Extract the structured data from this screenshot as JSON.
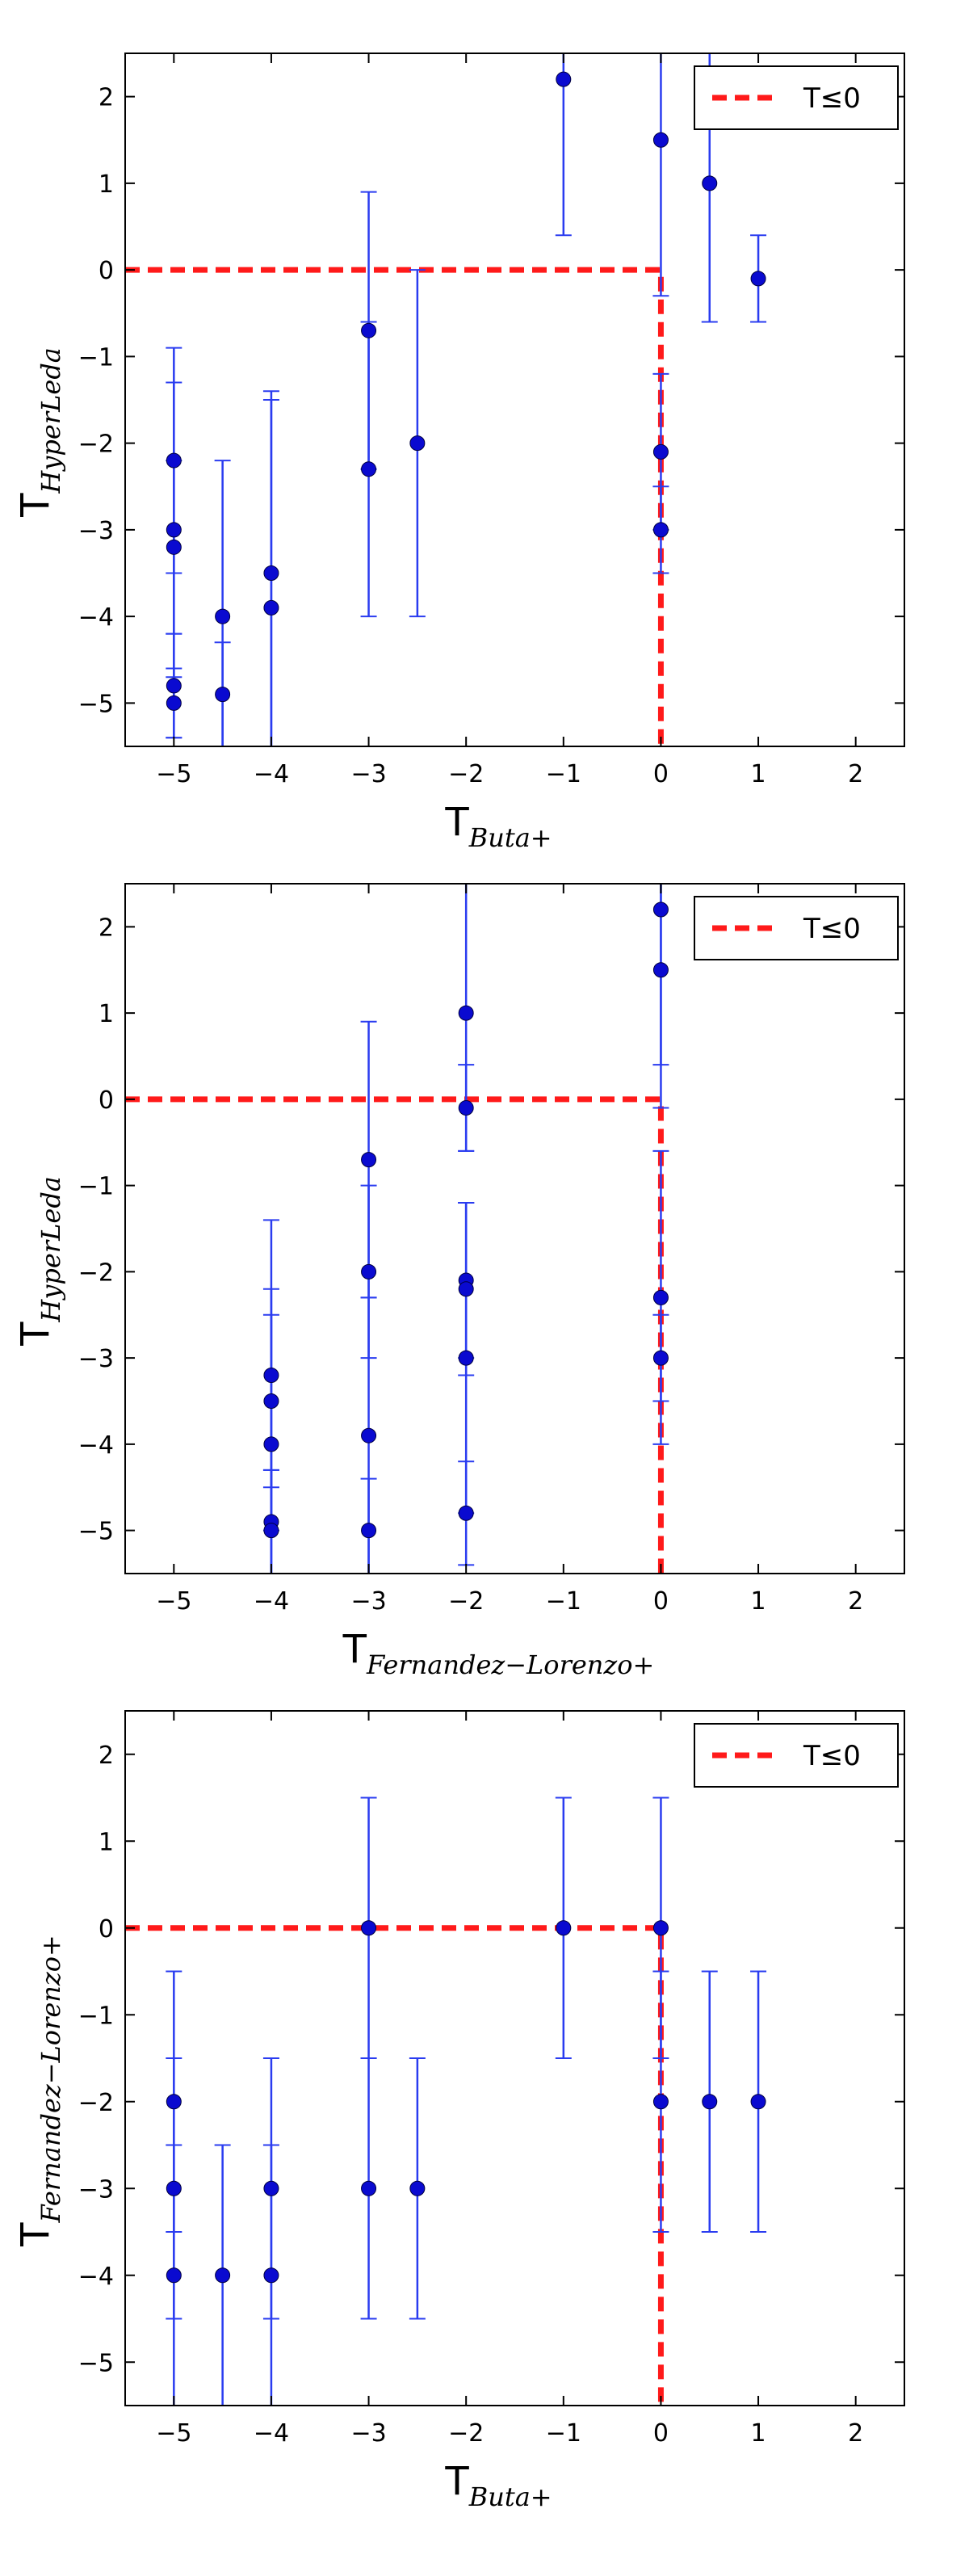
{
  "chart_data": [
    {
      "type": "scatter",
      "xlabel": {
        "main": "T",
        "sub": "Buta+"
      },
      "ylabel": {
        "main": "T",
        "sub": "HyperLeda"
      },
      "xlim": [
        -5.5,
        2.5
      ],
      "ylim": [
        -5.5,
        2.5
      ],
      "xticks": [
        -5,
        -4,
        -3,
        -2,
        -1,
        0,
        1,
        2
      ],
      "yticks": [
        2,
        1,
        0,
        -1,
        -2,
        -3,
        -4,
        -5
      ],
      "tick_labels_x": [
        "−5",
        "−4",
        "−3",
        "−2",
        "−1",
        "0",
        "1",
        "2"
      ],
      "tick_labels_y": [
        "2",
        "1",
        "0",
        "−1",
        "−2",
        "−3",
        "−4",
        "−5"
      ],
      "legend": {
        "label": "T≤0",
        "placement": "top-right"
      },
      "threshold": 0,
      "points": [
        {
          "x": -5,
          "y": -2.2,
          "err": 1.3
        },
        {
          "x": -5,
          "y": -3.0,
          "err": 1.7
        },
        {
          "x": -5,
          "y": -3.2,
          "err": 1.0
        },
        {
          "x": -5,
          "y": -4.8,
          "err": 0.6
        },
        {
          "x": -5,
          "y": -5.0,
          "err": 0.4
        },
        {
          "x": -4.5,
          "y": -4.0,
          "err": 1.8
        },
        {
          "x": -4.5,
          "y": -4.9,
          "err": 0.6
        },
        {
          "x": -4,
          "y": -3.5,
          "err": 2.1
        },
        {
          "x": -4,
          "y": -3.9,
          "err": 2.4
        },
        {
          "x": -3,
          "y": -0.7,
          "err": 1.6
        },
        {
          "x": -3,
          "y": -2.3,
          "err": 1.7
        },
        {
          "x": -2.5,
          "y": -2.0,
          "err": 2.0
        },
        {
          "x": -1,
          "y": 2.2,
          "err": 1.8
        },
        {
          "x": 0,
          "y": 1.5,
          "err": 1.8
        },
        {
          "x": 0,
          "y": -2.1,
          "err": 0.9
        },
        {
          "x": 0,
          "y": -3.0,
          "err": 0.5
        },
        {
          "x": 0.5,
          "y": 1.0,
          "err": 1.6
        },
        {
          "x": 1,
          "y": -0.1,
          "err": 0.5
        }
      ]
    },
    {
      "type": "scatter",
      "xlabel": {
        "main": "T",
        "sub": "Fernandez−Lorenzo+"
      },
      "ylabel": {
        "main": "T",
        "sub": "HyperLeda"
      },
      "xlim": [
        -5.5,
        2.5
      ],
      "ylim": [
        -5.5,
        2.5
      ],
      "xticks": [
        -5,
        -4,
        -3,
        -2,
        -1,
        0,
        1,
        2
      ],
      "yticks": [
        2,
        1,
        0,
        -1,
        -2,
        -3,
        -4,
        -5
      ],
      "tick_labels_x": [
        "−5",
        "−4",
        "−3",
        "−2",
        "−1",
        "0",
        "1",
        "2"
      ],
      "tick_labels_y": [
        "2",
        "1",
        "0",
        "−1",
        "−2",
        "−3",
        "−4",
        "−5"
      ],
      "legend": {
        "label": "T≤0",
        "placement": "top-right"
      },
      "threshold": 0,
      "points": [
        {
          "x": -4,
          "y": -3.2,
          "err": 1.8
        },
        {
          "x": -4,
          "y": -3.5,
          "err": 1.0
        },
        {
          "x": -4,
          "y": -4.0,
          "err": 1.8
        },
        {
          "x": -4,
          "y": -4.9,
          "err": 0.6
        },
        {
          "x": -4,
          "y": -5.0,
          "err": 0.7
        },
        {
          "x": -3,
          "y": -0.7,
          "err": 1.6
        },
        {
          "x": -3,
          "y": -2.0,
          "err": 1.0
        },
        {
          "x": -3,
          "y": -3.9,
          "err": 1.6
        },
        {
          "x": -3,
          "y": -5.0,
          "err": 0.6
        },
        {
          "x": -2,
          "y": 1.0,
          "err": 1.6
        },
        {
          "x": -2,
          "y": -0.1,
          "err": 0.5
        },
        {
          "x": -2,
          "y": -2.1,
          "err": 0.9
        },
        {
          "x": -2,
          "y": -2.2,
          "err": 1.0
        },
        {
          "x": -2,
          "y": -3.0,
          "err": 1.8
        },
        {
          "x": -2,
          "y": -4.8,
          "err": 0.6
        },
        {
          "x": 0,
          "y": 2.2,
          "err": 2.3
        },
        {
          "x": 0,
          "y": 1.5,
          "err": 1.1
        },
        {
          "x": 0,
          "y": -2.3,
          "err": 1.7
        },
        {
          "x": 0,
          "y": -3.0,
          "err": 0.5
        }
      ]
    },
    {
      "type": "scatter",
      "xlabel": {
        "main": "T",
        "sub": "Buta+"
      },
      "ylabel": {
        "main": "T",
        "sub": "Fernandez−Lorenzo+"
      },
      "xlim": [
        -5.5,
        2.5
      ],
      "ylim": [
        -5.5,
        2.5
      ],
      "xticks": [
        -5,
        -4,
        -3,
        -2,
        -1,
        0,
        1,
        2
      ],
      "yticks": [
        2,
        1,
        0,
        -1,
        -2,
        -3,
        -4,
        -5
      ],
      "tick_labels_x": [
        "−5",
        "−4",
        "−3",
        "−2",
        "−1",
        "0",
        "1",
        "2"
      ],
      "tick_labels_y": [
        "2",
        "1",
        "0",
        "−1",
        "−2",
        "−3",
        "−4",
        "−5"
      ],
      "legend": {
        "label": "T≤0",
        "placement": "top-right"
      },
      "threshold": 0,
      "points": [
        {
          "x": -5,
          "y": -2.0,
          "err": 1.5
        },
        {
          "x": -5,
          "y": -3.0,
          "err": 1.5
        },
        {
          "x": -5,
          "y": -4.0,
          "err": 1.5
        },
        {
          "x": -4.5,
          "y": -4.0,
          "err": 1.5
        },
        {
          "x": -4,
          "y": -3.0,
          "err": 1.5
        },
        {
          "x": -4,
          "y": -4.0,
          "err": 1.5
        },
        {
          "x": -3,
          "y": 0.0,
          "err": 1.5
        },
        {
          "x": -3,
          "y": -3.0,
          "err": 1.5
        },
        {
          "x": -2.5,
          "y": -3.0,
          "err": 1.5
        },
        {
          "x": -1,
          "y": 0.0,
          "err": 1.5
        },
        {
          "x": 0,
          "y": 0.0,
          "err": 1.5
        },
        {
          "x": 0,
          "y": -2.0,
          "err": 1.5
        },
        {
          "x": 0.5,
          "y": -2.0,
          "err": 1.5
        },
        {
          "x": 1,
          "y": -2.0,
          "err": 1.5
        }
      ]
    }
  ],
  "colors": {
    "marker": "#0a0ad0",
    "errorbar": "#2a3cf0",
    "threshold_line": "#ff1a1a",
    "axes": "#000000"
  }
}
